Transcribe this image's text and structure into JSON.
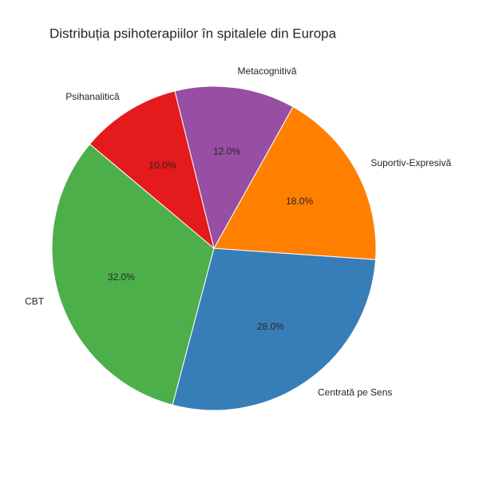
{
  "chart_data": {
    "type": "pie",
    "title": "Distribuția psihoterapiilor în spitalele din Europa",
    "categories": [
      "CBT",
      "Centrată pe Sens",
      "Suportiv-Expresivă",
      "Metacognitivă",
      "Psihanalitică"
    ],
    "values": [
      32,
      28,
      18,
      12,
      10
    ],
    "value_labels": [
      "32.0%",
      "28.0%",
      "18.0%",
      "12.0%",
      "10.0%"
    ],
    "colors": [
      "#4daf4a",
      "#377eb8",
      "#ff7f00",
      "#984ea3",
      "#e41a1c"
    ],
    "startangle": 140
  }
}
